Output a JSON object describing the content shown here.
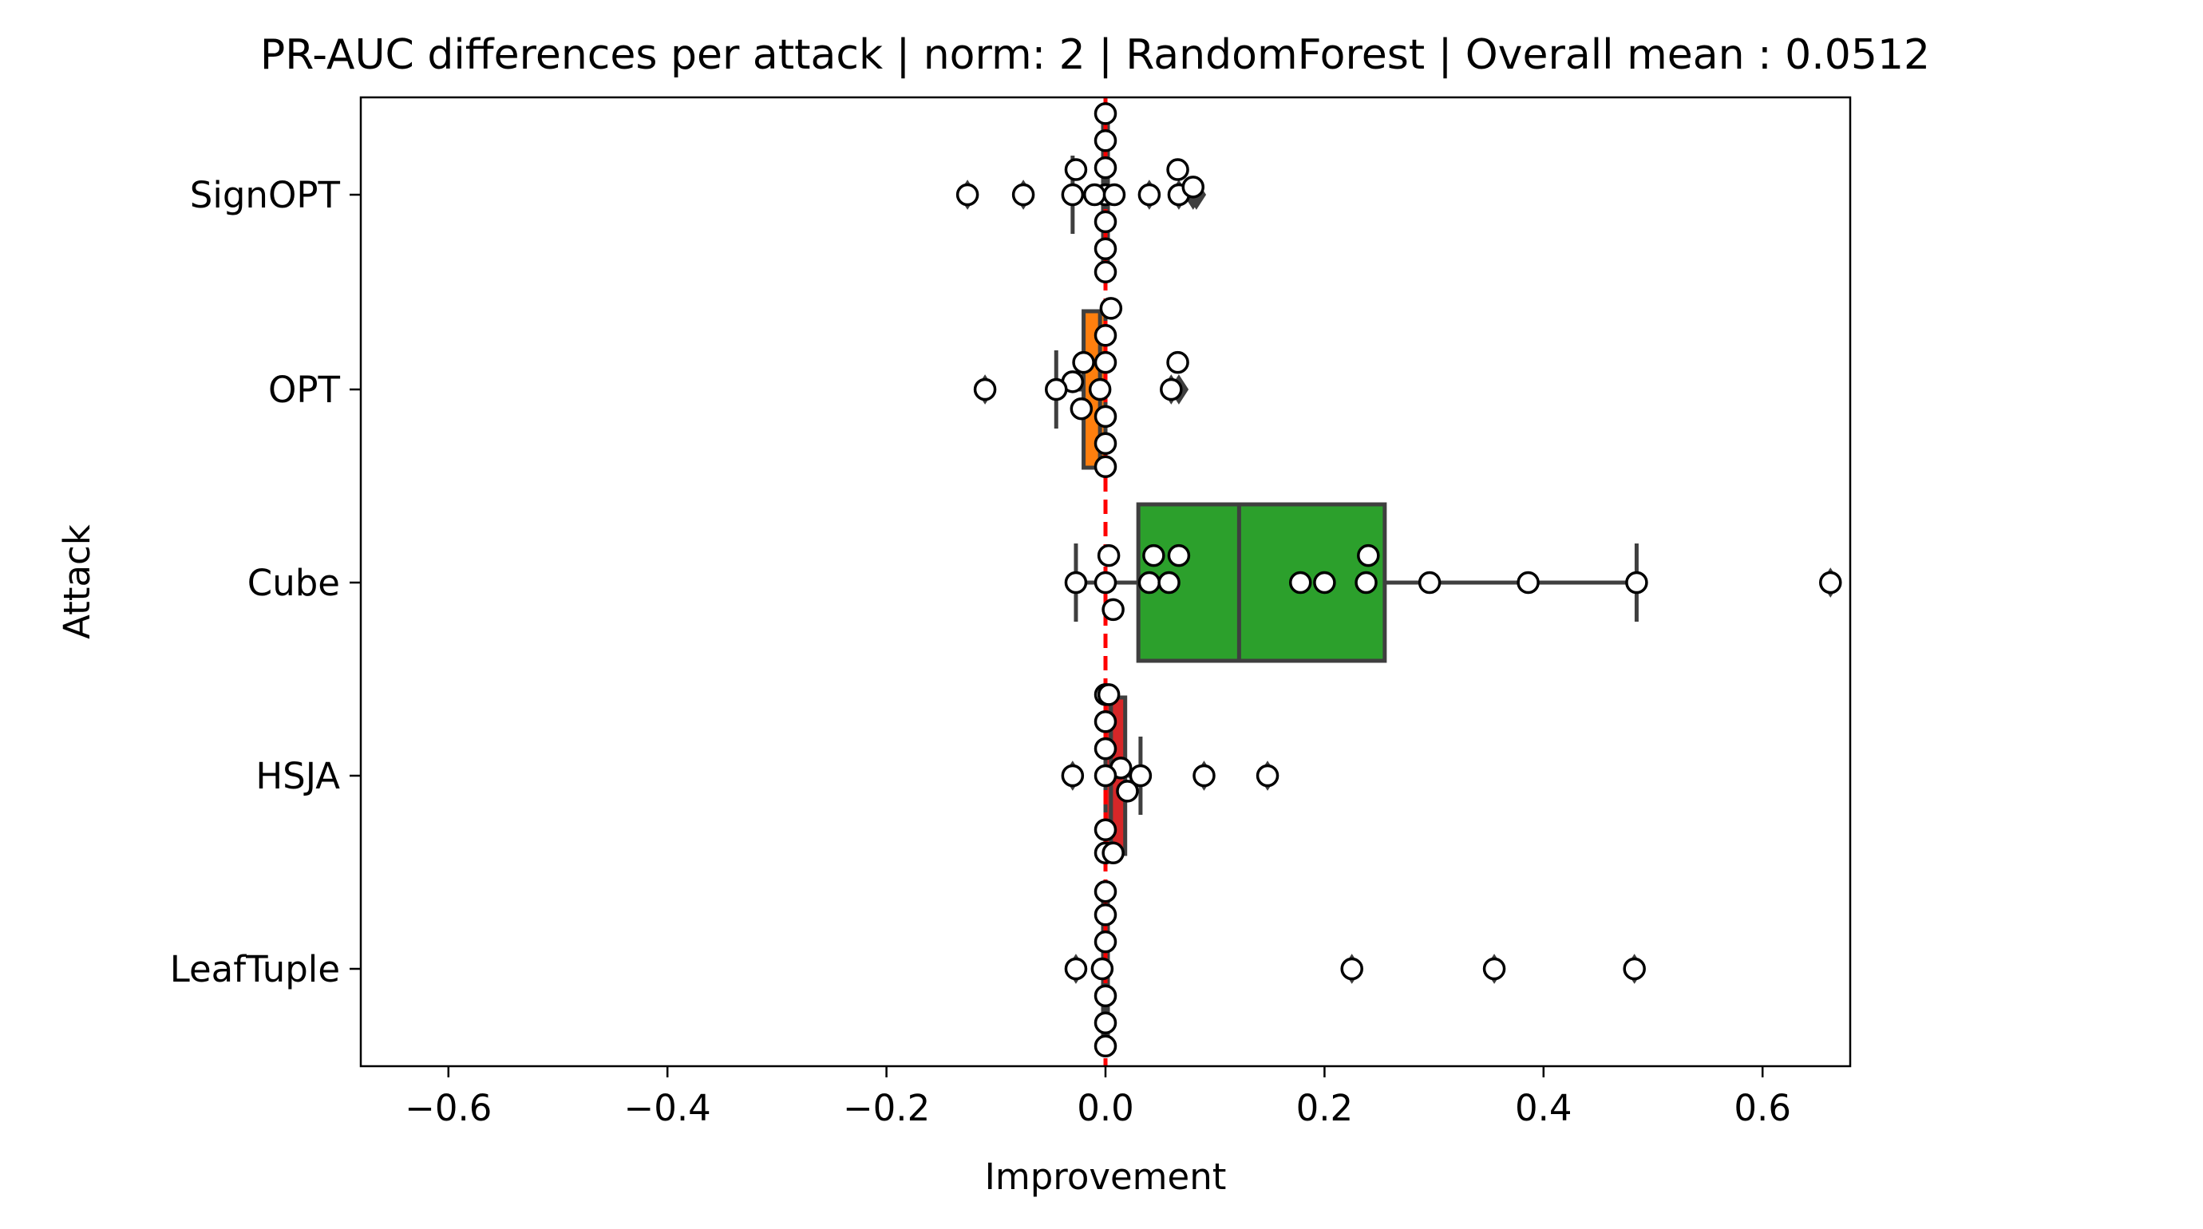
{
  "chart_data": {
    "type": "box",
    "orientation": "horizontal",
    "title": "PR-AUC differences per attack | norm: 2 | RandomForest | Overall mean : 0.0512",
    "xlabel": "Improvement",
    "ylabel": "Attack",
    "xlim": [
      -0.68,
      0.68
    ],
    "xticks": [
      -0.6,
      -0.4,
      -0.2,
      0.0,
      0.2,
      0.4,
      0.6
    ],
    "xtick_labels": [
      "−0.6",
      "−0.4",
      "−0.2",
      "0.0",
      "0.2",
      "0.4",
      "0.6"
    ],
    "grid": false,
    "reference_line": {
      "x": 0.0,
      "style": "dashed",
      "color": "#ff0000"
    },
    "categories": [
      "SignOPT",
      "OPT",
      "Cube",
      "HSJA",
      "LeafTuple"
    ],
    "boxes": [
      {
        "category": "SignOPT",
        "color": "#1f77b4",
        "q1": 0.0,
        "median": 0.0,
        "q3": 0.0,
        "whisker_low": -0.03,
        "whisker_high": 0.0,
        "fliers": [
          -0.126,
          -0.075,
          0.04,
          0.067,
          0.08,
          0.083
        ]
      },
      {
        "category": "OPT",
        "color": "#ff7f0e",
        "q1": -0.02,
        "median": -0.005,
        "q3": 0.0,
        "whisker_low": -0.045,
        "whisker_high": 0.0,
        "fliers": [
          -0.11,
          0.06,
          0.067
        ]
      },
      {
        "category": "Cube",
        "color": "#2ca02c",
        "q1": 0.03,
        "median": 0.122,
        "q3": 0.255,
        "whisker_low": -0.027,
        "whisker_high": 0.485,
        "fliers": [
          0.662
        ]
      },
      {
        "category": "HSJA",
        "color": "#d62728",
        "q1": 0.0,
        "median": 0.005,
        "q3": 0.018,
        "whisker_low": 0.0,
        "whisker_high": 0.032,
        "fliers": [
          -0.03,
          0.09,
          0.148
        ]
      },
      {
        "category": "LeafTuple",
        "color": "#9467bd",
        "q1": 0.0,
        "median": 0.0,
        "q3": 0.0,
        "whisker_low": 0.0,
        "whisker_high": 0.0,
        "fliers": [
          -0.027,
          0.225,
          0.355,
          0.483
        ]
      }
    ],
    "points": [
      {
        "category": "SignOPT",
        "x": 0.0,
        "offset": -0.42
      },
      {
        "category": "SignOPT",
        "x": 0.0,
        "offset": -0.28
      },
      {
        "category": "SignOPT",
        "x": 0.0,
        "offset": -0.14
      },
      {
        "category": "SignOPT",
        "x": -0.027,
        "offset": -0.13
      },
      {
        "category": "SignOPT",
        "x": 0.066,
        "offset": -0.13
      },
      {
        "category": "SignOPT",
        "x": 0.0,
        "offset": 0.0
      },
      {
        "category": "SignOPT",
        "x": -0.126,
        "offset": 0.0
      },
      {
        "category": "SignOPT",
        "x": -0.075,
        "offset": 0.0
      },
      {
        "category": "SignOPT",
        "x": -0.03,
        "offset": 0.0
      },
      {
        "category": "SignOPT",
        "x": -0.01,
        "offset": 0.0
      },
      {
        "category": "SignOPT",
        "x": 0.008,
        "offset": 0.0
      },
      {
        "category": "SignOPT",
        "x": 0.04,
        "offset": 0.0
      },
      {
        "category": "SignOPT",
        "x": 0.067,
        "offset": 0.0
      },
      {
        "category": "SignOPT",
        "x": 0.08,
        "offset": -0.04
      },
      {
        "category": "SignOPT",
        "x": 0.0,
        "offset": 0.14
      },
      {
        "category": "SignOPT",
        "x": 0.0,
        "offset": 0.28
      },
      {
        "category": "SignOPT",
        "x": 0.0,
        "offset": 0.4
      },
      {
        "category": "OPT",
        "x": 0.005,
        "offset": -0.42
      },
      {
        "category": "OPT",
        "x": 0.0,
        "offset": -0.28
      },
      {
        "category": "OPT",
        "x": -0.02,
        "offset": -0.14
      },
      {
        "category": "OPT",
        "x": 0.0,
        "offset": -0.14
      },
      {
        "category": "OPT",
        "x": 0.066,
        "offset": -0.14
      },
      {
        "category": "OPT",
        "x": -0.03,
        "offset": -0.04
      },
      {
        "category": "OPT",
        "x": -0.11,
        "offset": 0.0
      },
      {
        "category": "OPT",
        "x": -0.045,
        "offset": 0.0
      },
      {
        "category": "OPT",
        "x": -0.005,
        "offset": 0.0
      },
      {
        "category": "OPT",
        "x": 0.06,
        "offset": 0.0
      },
      {
        "category": "OPT",
        "x": -0.022,
        "offset": 0.1
      },
      {
        "category": "OPT",
        "x": 0.0,
        "offset": 0.14
      },
      {
        "category": "OPT",
        "x": 0.0,
        "offset": 0.28
      },
      {
        "category": "OPT",
        "x": 0.0,
        "offset": 0.4
      },
      {
        "category": "Cube",
        "x": 0.003,
        "offset": -0.14
      },
      {
        "category": "Cube",
        "x": 0.044,
        "offset": -0.14
      },
      {
        "category": "Cube",
        "x": 0.067,
        "offset": -0.14
      },
      {
        "category": "Cube",
        "x": 0.24,
        "offset": -0.14
      },
      {
        "category": "Cube",
        "x": -0.027,
        "offset": 0.0
      },
      {
        "category": "Cube",
        "x": 0.0,
        "offset": 0.0
      },
      {
        "category": "Cube",
        "x": 0.04,
        "offset": 0.0
      },
      {
        "category": "Cube",
        "x": 0.058,
        "offset": 0.0
      },
      {
        "category": "Cube",
        "x": 0.178,
        "offset": 0.0
      },
      {
        "category": "Cube",
        "x": 0.2,
        "offset": 0.0
      },
      {
        "category": "Cube",
        "x": 0.238,
        "offset": 0.0
      },
      {
        "category": "Cube",
        "x": 0.296,
        "offset": 0.0
      },
      {
        "category": "Cube",
        "x": 0.386,
        "offset": 0.0
      },
      {
        "category": "Cube",
        "x": 0.485,
        "offset": 0.0
      },
      {
        "category": "Cube",
        "x": 0.662,
        "offset": 0.0
      },
      {
        "category": "Cube",
        "x": 0.007,
        "offset": 0.14
      },
      {
        "category": "HSJA",
        "x": 0.0,
        "offset": -0.42
      },
      {
        "category": "HSJA",
        "x": 0.003,
        "offset": -0.42
      },
      {
        "category": "HSJA",
        "x": 0.0,
        "offset": -0.28
      },
      {
        "category": "HSJA",
        "x": 0.0,
        "offset": -0.14
      },
      {
        "category": "HSJA",
        "x": 0.014,
        "offset": -0.04
      },
      {
        "category": "HSJA",
        "x": -0.03,
        "offset": 0.0
      },
      {
        "category": "HSJA",
        "x": 0.0,
        "offset": 0.0
      },
      {
        "category": "HSJA",
        "x": 0.032,
        "offset": 0.0
      },
      {
        "category": "HSJA",
        "x": 0.09,
        "offset": 0.0
      },
      {
        "category": "HSJA",
        "x": 0.148,
        "offset": 0.0
      },
      {
        "category": "HSJA",
        "x": 0.02,
        "offset": 0.08
      },
      {
        "category": "HSJA",
        "x": 0.0,
        "offset": 0.28
      },
      {
        "category": "HSJA",
        "x": 0.0,
        "offset": 0.4
      },
      {
        "category": "HSJA",
        "x": 0.007,
        "offset": 0.4
      },
      {
        "category": "LeafTuple",
        "x": 0.0,
        "offset": -0.4
      },
      {
        "category": "LeafTuple",
        "x": 0.0,
        "offset": -0.28
      },
      {
        "category": "LeafTuple",
        "x": 0.0,
        "offset": -0.14
      },
      {
        "category": "LeafTuple",
        "x": -0.027,
        "offset": 0.0
      },
      {
        "category": "LeafTuple",
        "x": -0.003,
        "offset": 0.0
      },
      {
        "category": "LeafTuple",
        "x": 0.225,
        "offset": 0.0
      },
      {
        "category": "LeafTuple",
        "x": 0.355,
        "offset": 0.0
      },
      {
        "category": "LeafTuple",
        "x": 0.483,
        "offset": 0.0
      },
      {
        "category": "LeafTuple",
        "x": 0.0,
        "offset": 0.14
      },
      {
        "category": "LeafTuple",
        "x": 0.0,
        "offset": 0.28
      },
      {
        "category": "LeafTuple",
        "x": 0.0,
        "offset": 0.4
      }
    ]
  }
}
